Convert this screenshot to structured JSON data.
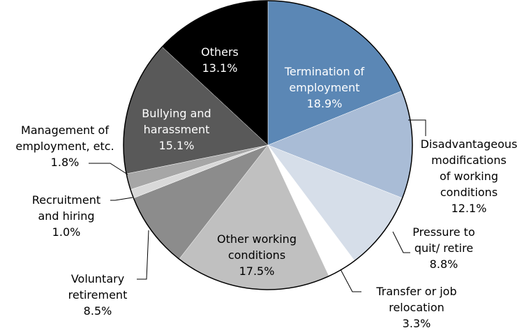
{
  "chart_data": {
    "type": "pie",
    "categories": [
      "Termination of\nemployment",
      "Disadvantageous\nmodifications\nof working\nconditions",
      "Pressure to\nquit/ retire",
      "Transfer or job\nrelocation",
      "Other working\nconditions",
      "Voluntary\nretirement",
      "Recruitment\nand hiring",
      "Management of\nemployment, etc.",
      "Bullying and\nharassment",
      "Others"
    ],
    "values": [
      18.9,
      12.1,
      8.8,
      3.3,
      17.5,
      8.5,
      1.0,
      1.8,
      15.1,
      13.1
    ],
    "value_labels": [
      "18.9%",
      "12.1%",
      "8.8%",
      "3.3%",
      "17.5%",
      "8.5%",
      "1.0%",
      "1.8%",
      "15.1%",
      "13.1%"
    ],
    "colors": [
      "#5b87b5",
      "#a9bcd6",
      "#d6dee9",
      "#ffffff",
      "#c0c0c0",
      "#8c8c8c",
      "#d9d9d9",
      "#a6a6a6",
      "#595959",
      "#000000"
    ]
  }
}
